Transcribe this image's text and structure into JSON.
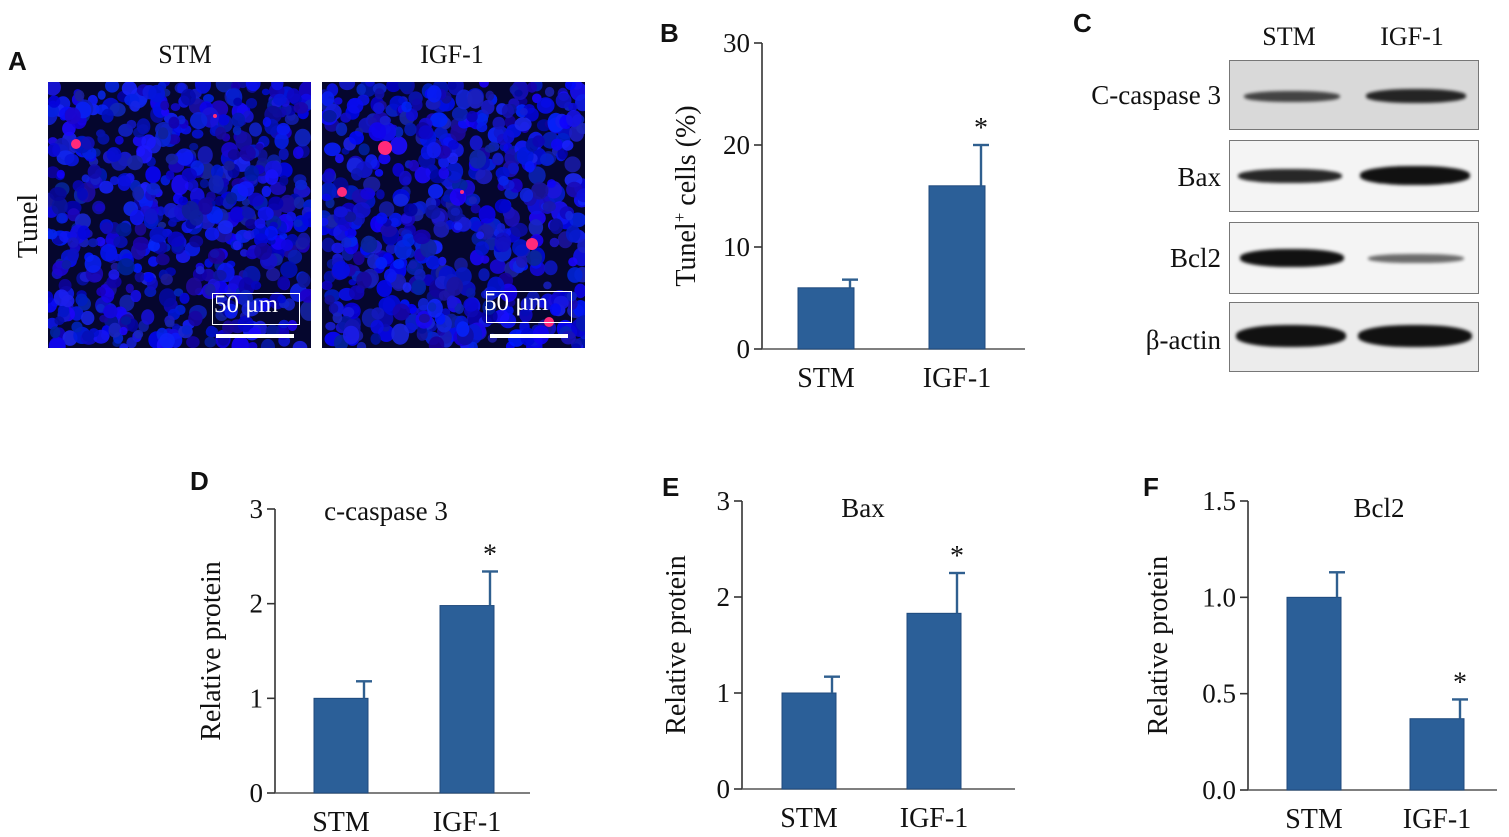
{
  "panels": {
    "A": {
      "letter": "A",
      "row_label": "Tunel",
      "columns": [
        "STM",
        "IGF-1"
      ],
      "scale_bar_label": "50 μm"
    },
    "B": {
      "letter": "B"
    },
    "C": {
      "letter": "C",
      "columns": [
        "STM",
        "IGF-1"
      ],
      "rows": [
        "C-caspase 3",
        "Bax",
        "Bcl2",
        "β-actin"
      ]
    },
    "D": {
      "letter": "D"
    },
    "E": {
      "letter": "E"
    },
    "F": {
      "letter": "F"
    }
  },
  "colors": {
    "bar": "#2b5f98",
    "bar_edge": "#1f4a7d",
    "nuclei": "#1a1fd6",
    "tunel": "#ff2a7a"
  },
  "chart_data": [
    {
      "id": "B",
      "type": "bar",
      "title": "",
      "ylabel": "Tunel⁺ cells (%)",
      "categories": [
        "STM",
        "IGF-1"
      ],
      "values": [
        6,
        16
      ],
      "errors": [
        0.8,
        4
      ],
      "significance": [
        "",
        "*"
      ],
      "ylim": [
        0,
        30
      ],
      "yticks": [
        0,
        10,
        20,
        30
      ],
      "ytick_labels": [
        "0",
        "10",
        "20",
        "30"
      ]
    },
    {
      "id": "D",
      "type": "bar",
      "title": "c-caspase 3",
      "ylabel": "Relative protein",
      "categories": [
        "STM",
        "IGF-1"
      ],
      "values": [
        1.0,
        1.98
      ],
      "errors": [
        0.18,
        0.36
      ],
      "significance": [
        "",
        "*"
      ],
      "ylim": [
        0,
        3
      ],
      "yticks": [
        0,
        1,
        2,
        3
      ],
      "ytick_labels": [
        "0",
        "1",
        "2",
        "3"
      ]
    },
    {
      "id": "E",
      "type": "bar",
      "title": "Bax",
      "ylabel": "Relative protein",
      "categories": [
        "STM",
        "IGF-1"
      ],
      "values": [
        1.0,
        1.83
      ],
      "errors": [
        0.17,
        0.42
      ],
      "significance": [
        "",
        "*"
      ],
      "ylim": [
        0,
        3
      ],
      "yticks": [
        0,
        1,
        2,
        3
      ],
      "ytick_labels": [
        "0",
        "1",
        "2",
        "3"
      ]
    },
    {
      "id": "F",
      "type": "bar",
      "title": "Bcl2",
      "ylabel": "Relative protein",
      "categories": [
        "STM",
        "IGF-1"
      ],
      "values": [
        1.0,
        0.37
      ],
      "errors": [
        0.13,
        0.1
      ],
      "significance": [
        "",
        "*"
      ],
      "ylim": [
        0,
        1.5
      ],
      "yticks": [
        0,
        0.5,
        1,
        1.5
      ],
      "ytick_labels": [
        "0.0",
        "0.5",
        "1.0",
        "1.5"
      ]
    }
  ]
}
